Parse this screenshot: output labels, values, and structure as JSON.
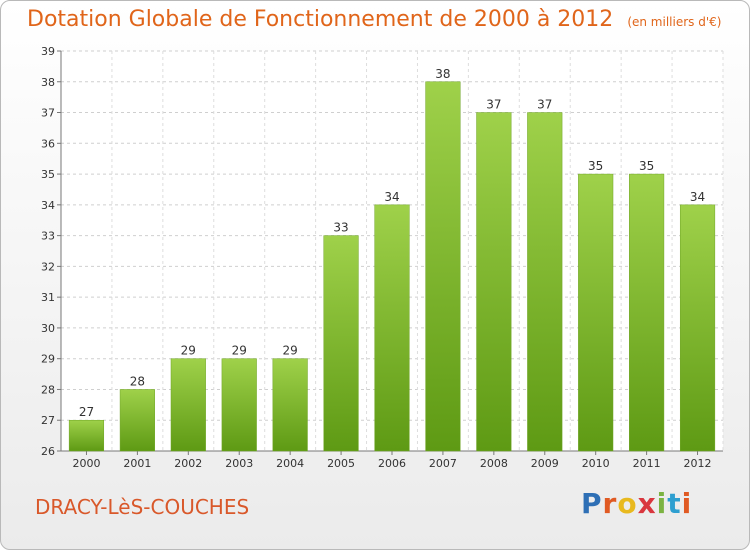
{
  "header": {
    "title": "Dotation Globale de Fonctionnement de 2000 à 2012",
    "unit": "(en milliers d'€)"
  },
  "footer": {
    "commune": "DRACY-LèS-COUCHES",
    "logo_letters": [
      "P",
      "r",
      "o",
      "x",
      "i",
      "t",
      "i"
    ],
    "logo_colors": [
      "#2e6fb5",
      "#e05a23",
      "#e8b91e",
      "#d9363e",
      "#7cb342",
      "#2e9fd0",
      "#e05a23"
    ]
  },
  "chart_data": {
    "type": "bar",
    "categories": [
      "2000",
      "2001",
      "2002",
      "2003",
      "2004",
      "2005",
      "2006",
      "2007",
      "2008",
      "2009",
      "2010",
      "2011",
      "2012"
    ],
    "values": [
      27,
      28,
      29,
      29,
      29,
      33,
      34,
      38,
      37,
      37,
      35,
      35,
      34
    ],
    "ylim": [
      26,
      39
    ],
    "yticks": [
      26,
      27,
      28,
      29,
      30,
      31,
      32,
      33,
      34,
      35,
      36,
      37,
      38,
      39
    ],
    "grid": true,
    "bar_color_top": "#9fd14a",
    "bar_color_bottom": "#5e9a14"
  }
}
